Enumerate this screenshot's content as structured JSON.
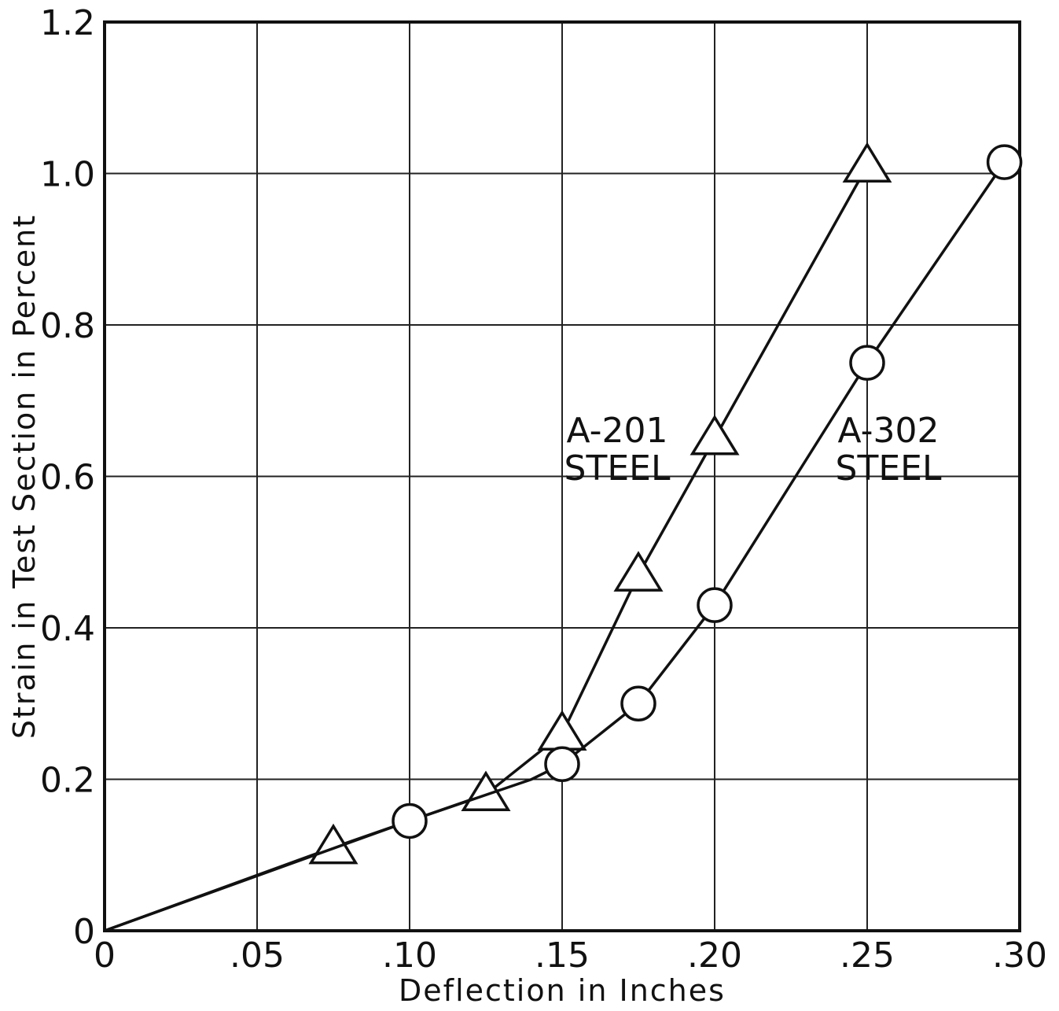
{
  "chart_data": {
    "type": "line",
    "title": "",
    "xlabel": "Deflection in Inches",
    "ylabel": "Strain in Test Section in Percent",
    "xlim": [
      0,
      0.3
    ],
    "ylim": [
      0,
      1.2
    ],
    "grid": true,
    "x_ticks": [
      {
        "value": 0,
        "label": "0"
      },
      {
        "value": 0.05,
        "label": ".05"
      },
      {
        "value": 0.1,
        "label": ".10"
      },
      {
        "value": 0.15,
        "label": ".15"
      },
      {
        "value": 0.2,
        "label": ".20"
      },
      {
        "value": 0.25,
        "label": ".25"
      },
      {
        "value": 0.3,
        "label": ".30"
      }
    ],
    "y_ticks": [
      {
        "value": 0,
        "label": "0"
      },
      {
        "value": 0.2,
        "label": "0.2"
      },
      {
        "value": 0.4,
        "label": "0.4"
      },
      {
        "value": 0.6,
        "label": "0.6"
      },
      {
        "value": 0.8,
        "label": "0.8"
      },
      {
        "value": 1.0,
        "label": "1.0"
      },
      {
        "value": 1.2,
        "label": "1.2"
      }
    ],
    "series": [
      {
        "name": "A-201 STEEL",
        "label_lines": [
          "A-201",
          "STEEL"
        ],
        "marker": "triangle",
        "x": [
          0,
          0.075,
          0.125,
          0.15,
          0.175,
          0.2,
          0.25
        ],
        "y": [
          0,
          0.11,
          0.18,
          0.26,
          0.47,
          0.65,
          1.01
        ],
        "marker_x": [
          0.075,
          0.125,
          0.15,
          0.175,
          0.2,
          0.25
        ],
        "marker_y": [
          0.11,
          0.18,
          0.26,
          0.47,
          0.65,
          1.01
        ]
      },
      {
        "name": "A-302 STEEL",
        "label_lines": [
          "A-302",
          "STEEL"
        ],
        "marker": "circle",
        "x": [
          0,
          0.1,
          0.14,
          0.15,
          0.175,
          0.2,
          0.25,
          0.295
        ],
        "y": [
          0,
          0.145,
          0.2,
          0.22,
          0.3,
          0.43,
          0.75,
          1.015
        ],
        "marker_x": [
          0.1,
          0.15,
          0.175,
          0.2,
          0.25,
          0.295
        ],
        "marker_y": [
          0.145,
          0.22,
          0.3,
          0.43,
          0.75,
          1.015
        ]
      }
    ]
  }
}
